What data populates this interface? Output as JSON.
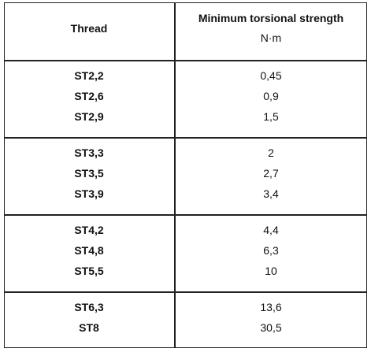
{
  "header": {
    "thread": "Thread",
    "strength": "Minimum torsional strength",
    "unit": "N·m"
  },
  "groups": [
    {
      "rows": [
        [
          "ST2,2",
          "0,45"
        ],
        [
          "ST2,6",
          "0,9"
        ],
        [
          "ST2,9",
          "1,5"
        ]
      ]
    },
    {
      "rows": [
        [
          "ST3,3",
          "2"
        ],
        [
          "ST3,5",
          "2,7"
        ],
        [
          "ST3,9",
          "3,4"
        ]
      ]
    },
    {
      "rows": [
        [
          "ST4,2",
          "4,4"
        ],
        [
          "ST4,8",
          "6,3"
        ],
        [
          "ST5,5",
          "10"
        ]
      ]
    },
    {
      "rows": [
        [
          "ST6,3",
          "13,6"
        ],
        [
          "ST8",
          "30,5"
        ]
      ]
    }
  ]
}
